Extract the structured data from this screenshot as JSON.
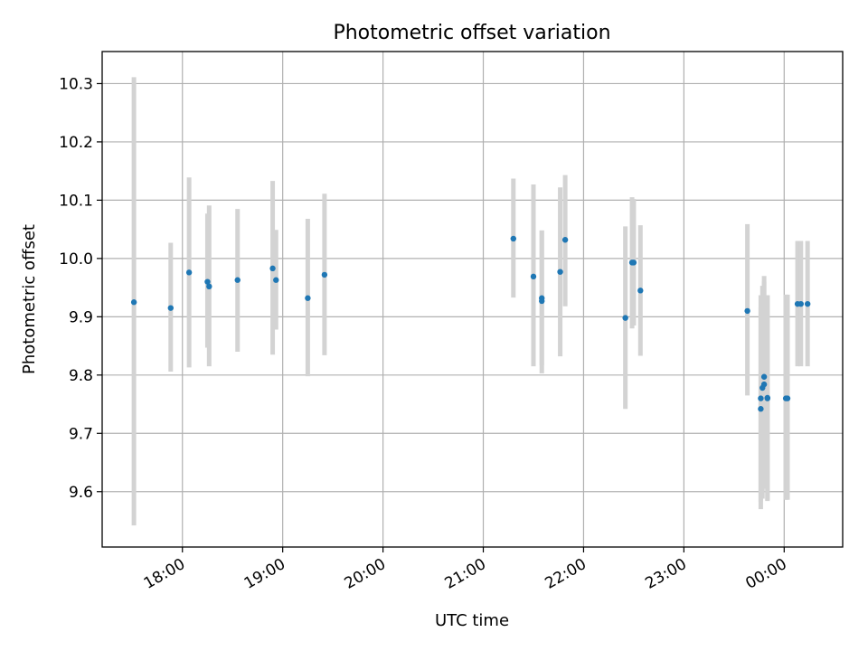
{
  "chart_data": {
    "type": "scatter",
    "title": "Photometric offset variation",
    "xlabel": "UTC time",
    "ylabel": "Photometric offset",
    "x_tick_labels": [
      "18:00",
      "19:00",
      "20:00",
      "21:00",
      "22:00",
      "23:00",
      "00:00"
    ],
    "y_tick_labels": [
      "9.6",
      "9.7",
      "9.8",
      "9.9",
      "10.0",
      "10.1",
      "10.2",
      "10.3"
    ],
    "y_ticks": [
      9.6,
      9.7,
      9.8,
      9.9,
      10.0,
      10.1,
      10.2,
      10.3
    ],
    "xlim": [
      "17:12",
      "00:35"
    ],
    "ylim": [
      9.505,
      10.355
    ],
    "grid": true,
    "marker_color": "#1f77b4",
    "errorbar_color": "#d3d3d3",
    "points": [
      {
        "x": "17:31",
        "y": 9.925,
        "yerr_low": 9.542,
        "yerr_high": 10.311
      },
      {
        "x": "17:53",
        "y": 9.915,
        "yerr_low": 9.806,
        "yerr_high": 10.027
      },
      {
        "x": "18:04",
        "y": 9.976,
        "yerr_low": 9.813,
        "yerr_high": 10.139
      },
      {
        "x": "18:15",
        "y": 9.96,
        "yerr_low": 9.847,
        "yerr_high": 10.077
      },
      {
        "x": "18:16",
        "y": 9.952,
        "yerr_low": 9.815,
        "yerr_high": 10.091
      },
      {
        "x": "18:33",
        "y": 9.963,
        "yerr_low": 9.84,
        "yerr_high": 10.085
      },
      {
        "x": "18:54",
        "y": 9.983,
        "yerr_low": 9.835,
        "yerr_high": 10.133
      },
      {
        "x": "18:56",
        "y": 9.963,
        "yerr_low": 9.878,
        "yerr_high": 10.049
      },
      {
        "x": "19:15",
        "y": 9.932,
        "yerr_low": 9.798,
        "yerr_high": 10.068
      },
      {
        "x": "19:25",
        "y": 9.972,
        "yerr_low": 9.834,
        "yerr_high": 10.111
      },
      {
        "x": "21:18",
        "y": 10.034,
        "yerr_low": 9.933,
        "yerr_high": 10.137
      },
      {
        "x": "21:30",
        "y": 9.969,
        "yerr_low": 9.815,
        "yerr_high": 10.127
      },
      {
        "x": "21:35",
        "y": 9.932,
        "yerr_low": 9.817,
        "yerr_high": 10.048
      },
      {
        "x": "21:35",
        "y": 9.927,
        "yerr_low": 9.803,
        "yerr_high": 10.048
      },
      {
        "x": "21:46",
        "y": 9.977,
        "yerr_low": 9.832,
        "yerr_high": 10.122
      },
      {
        "x": "21:49",
        "y": 10.032,
        "yerr_low": 9.918,
        "yerr_high": 10.143
      },
      {
        "x": "22:25",
        "y": 9.898,
        "yerr_low": 9.742,
        "yerr_high": 10.055
      },
      {
        "x": "22:29",
        "y": 9.993,
        "yerr_low": 9.88,
        "yerr_high": 10.105
      },
      {
        "x": "22:30",
        "y": 9.993,
        "yerr_low": 9.885,
        "yerr_high": 10.102
      },
      {
        "x": "22:34",
        "y": 9.945,
        "yerr_low": 9.833,
        "yerr_high": 10.057
      },
      {
        "x": "23:38",
        "y": 9.91,
        "yerr_low": 9.765,
        "yerr_high": 10.059
      },
      {
        "x": "23:46",
        "y": 9.742,
        "yerr_low": 9.57,
        "yerr_high": 9.916
      },
      {
        "x": "23:46",
        "y": 9.76,
        "yerr_low": 9.583,
        "yerr_high": 9.937
      },
      {
        "x": "23:47",
        "y": 9.778,
        "yerr_low": 9.588,
        "yerr_high": 9.953
      },
      {
        "x": "23:48",
        "y": 9.797,
        "yerr_low": 9.62,
        "yerr_high": 9.97
      },
      {
        "x": "23:48",
        "y": 9.784,
        "yerr_low": 9.605,
        "yerr_high": 9.96
      },
      {
        "x": "23:50",
        "y": 9.76,
        "yerr_low": 9.584,
        "yerr_high": 9.937
      },
      {
        "x": "23:50",
        "y": 9.761,
        "yerr_low": 9.586,
        "yerr_high": 9.937
      },
      {
        "x": "00:01",
        "y": 9.76,
        "yerr_low": 9.586,
        "yerr_high": 9.938
      },
      {
        "x": "00:02",
        "y": 9.76,
        "yerr_low": 9.586,
        "yerr_high": 9.938
      },
      {
        "x": "00:08",
        "y": 9.922,
        "yerr_low": 9.815,
        "yerr_high": 10.03
      },
      {
        "x": "00:10",
        "y": 9.922,
        "yerr_low": 9.815,
        "yerr_high": 10.03
      },
      {
        "x": "00:14",
        "y": 9.922,
        "yerr_low": 9.815,
        "yerr_high": 10.03
      }
    ]
  }
}
